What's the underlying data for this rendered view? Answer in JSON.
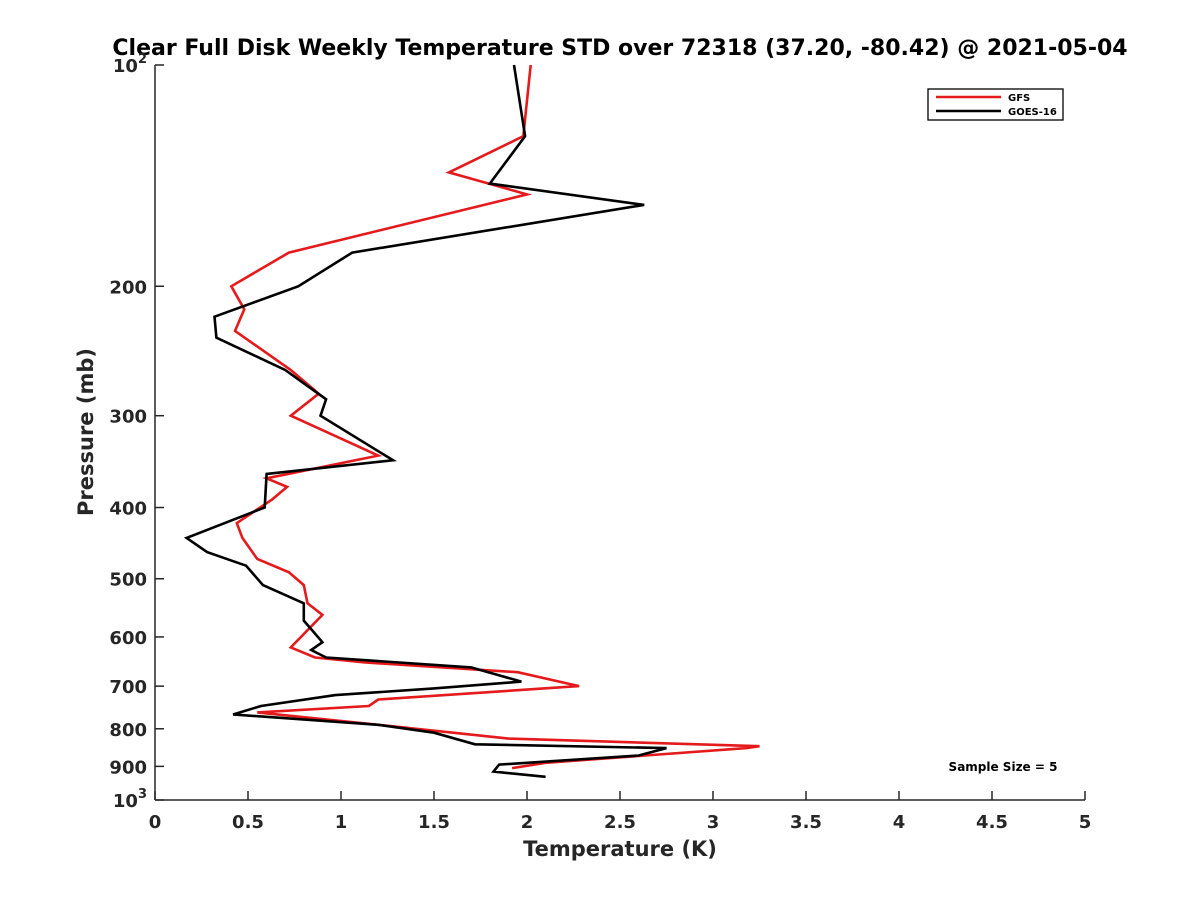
{
  "chart_data": {
    "type": "line",
    "title": "Clear Full Disk Weekly Temperature STD over 72318 (37.20, -80.42) @ 2021-05-04",
    "xlabel": "Temperature (K)",
    "ylabel": "Pressure (mb)",
    "xlim": [
      0,
      5
    ],
    "ylim": [
      100,
      1000
    ],
    "y_scale": "log",
    "y_reversed": true,
    "x_ticks": [
      "0",
      "0.5",
      "1",
      "1.5",
      "2",
      "2.5",
      "3",
      "3.5",
      "4",
      "4.5",
      "5"
    ],
    "y_ticks": [
      {
        "value": 100,
        "label": "10",
        "sup": "2"
      },
      {
        "value": 200,
        "label": "200"
      },
      {
        "value": 300,
        "label": "300"
      },
      {
        "value": 400,
        "label": "400"
      },
      {
        "value": 500,
        "label": "500"
      },
      {
        "value": 600,
        "label": "600"
      },
      {
        "value": 700,
        "label": "700"
      },
      {
        "value": 800,
        "label": "800"
      },
      {
        "value": 900,
        "label": "900"
      },
      {
        "value": 1000,
        "label": "10",
        "sup": "3"
      }
    ],
    "grid": false,
    "legend_position": "top-right",
    "annotation": "Sample Size = 5",
    "series": [
      {
        "name": "GFS",
        "color": "#e41a1c",
        "points": [
          [
            2.02,
            100
          ],
          [
            1.98,
            125
          ],
          [
            1.58,
            140
          ],
          [
            2.0,
            150
          ],
          [
            0.72,
            180
          ],
          [
            0.41,
            200
          ],
          [
            0.48,
            215
          ],
          [
            0.43,
            230
          ],
          [
            0.73,
            260
          ],
          [
            0.88,
            280
          ],
          [
            0.73,
            300
          ],
          [
            1.2,
            340
          ],
          [
            0.6,
            365
          ],
          [
            0.71,
            375
          ],
          [
            0.63,
            390
          ],
          [
            0.44,
            420
          ],
          [
            0.47,
            440
          ],
          [
            0.55,
            470
          ],
          [
            0.72,
            490
          ],
          [
            0.8,
            510
          ],
          [
            0.82,
            540
          ],
          [
            0.9,
            560
          ],
          [
            0.73,
            620
          ],
          [
            0.86,
            640
          ],
          [
            1.13,
            650
          ],
          [
            1.95,
            670
          ],
          [
            2.28,
            700
          ],
          [
            1.2,
            730
          ],
          [
            1.15,
            745
          ],
          [
            0.55,
            760
          ],
          [
            1.2,
            790
          ],
          [
            1.9,
            825
          ],
          [
            3.25,
            845
          ],
          [
            3.18,
            850
          ],
          [
            2.1,
            890
          ],
          [
            1.92,
            905
          ]
        ]
      },
      {
        "name": "GOES-16",
        "color": "#000000",
        "points": [
          [
            1.93,
            100
          ],
          [
            1.99,
            125
          ],
          [
            1.8,
            145
          ],
          [
            2.63,
            155
          ],
          [
            1.06,
            180
          ],
          [
            0.77,
            200
          ],
          [
            0.32,
            220
          ],
          [
            0.33,
            235
          ],
          [
            0.7,
            260
          ],
          [
            0.92,
            285
          ],
          [
            0.89,
            300
          ],
          [
            1.28,
            345
          ],
          [
            0.6,
            360
          ],
          [
            0.59,
            400
          ],
          [
            0.17,
            440
          ],
          [
            0.28,
            460
          ],
          [
            0.49,
            480
          ],
          [
            0.58,
            510
          ],
          [
            0.8,
            540
          ],
          [
            0.8,
            570
          ],
          [
            0.9,
            610
          ],
          [
            0.84,
            625
          ],
          [
            0.92,
            640
          ],
          [
            1.7,
            660
          ],
          [
            1.97,
            690
          ],
          [
            1.5,
            705
          ],
          [
            0.97,
            720
          ],
          [
            0.57,
            745
          ],
          [
            0.42,
            765
          ],
          [
            1.2,
            790
          ],
          [
            1.5,
            810
          ],
          [
            1.72,
            840
          ],
          [
            2.75,
            850
          ],
          [
            2.6,
            870
          ],
          [
            1.85,
            895
          ],
          [
            1.82,
            915
          ],
          [
            2.1,
            930
          ]
        ]
      }
    ]
  }
}
